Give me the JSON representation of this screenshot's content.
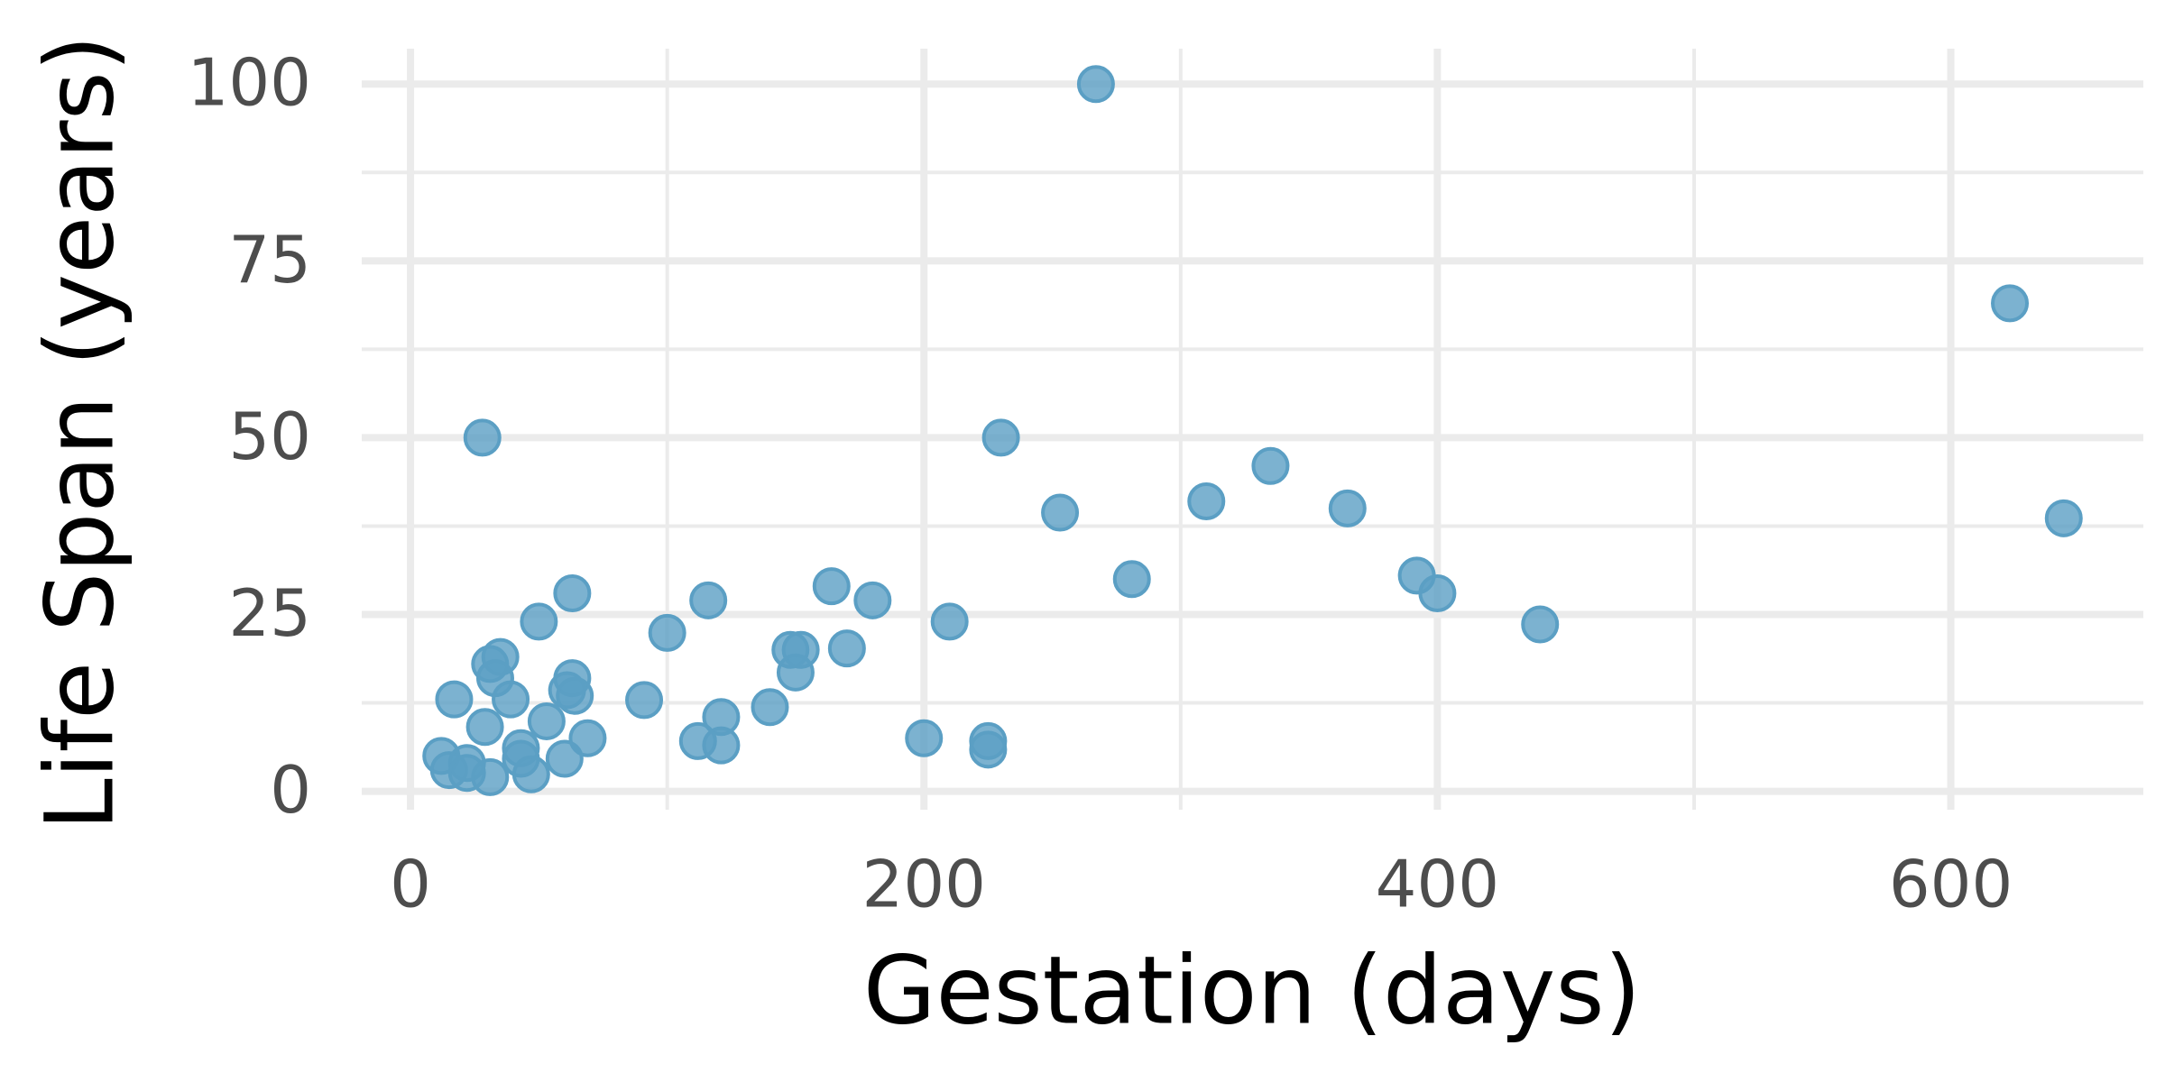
{
  "chart_data": {
    "type": "scatter",
    "x_label": "Gestation (days)",
    "y_label": "Life Span (years)",
    "color": "#5b9fc4",
    "grid": true,
    "xlim": [
      -19,
      675
    ],
    "ylim": [
      -2.6,
      105
    ],
    "xticks": [
      0,
      200,
      400,
      600
    ],
    "yticks": [
      0,
      25,
      50,
      75,
      100
    ],
    "x_minor_grid": [
      100,
      300,
      500
    ],
    "y_minor_grid": [
      12.5,
      37.5,
      62.5,
      87.5
    ],
    "x": [
      267,
      623,
      644,
      28,
      230,
      253,
      335,
      310,
      365,
      281,
      392,
      400,
      440,
      63,
      50,
      116,
      164,
      180,
      210,
      100,
      148,
      152,
      170,
      150,
      35,
      31,
      33,
      63,
      61,
      64,
      39,
      17,
      91,
      140,
      121,
      112,
      121,
      53,
      29,
      69,
      200,
      225,
      225,
      43,
      43,
      60,
      12,
      15,
      22,
      22,
      31,
      47
    ],
    "values": [
      100,
      69,
      38.6,
      50,
      50,
      39.4,
      46,
      41,
      40,
      30,
      30.5,
      28,
      23.6,
      28,
      24,
      27,
      29,
      27,
      24,
      22.4,
      20,
      20,
      20.2,
      16.8,
      19,
      18,
      16,
      16,
      14.3,
      13.5,
      13,
      13,
      12.9,
      11.9,
      10.5,
      7.1,
      6.5,
      9.9,
      9.1,
      7.5,
      7.5,
      7.1,
      5.9,
      6.1,
      4.6,
      4.6,
      5,
      3,
      4,
      2.6,
      2,
      2.4
    ]
  }
}
